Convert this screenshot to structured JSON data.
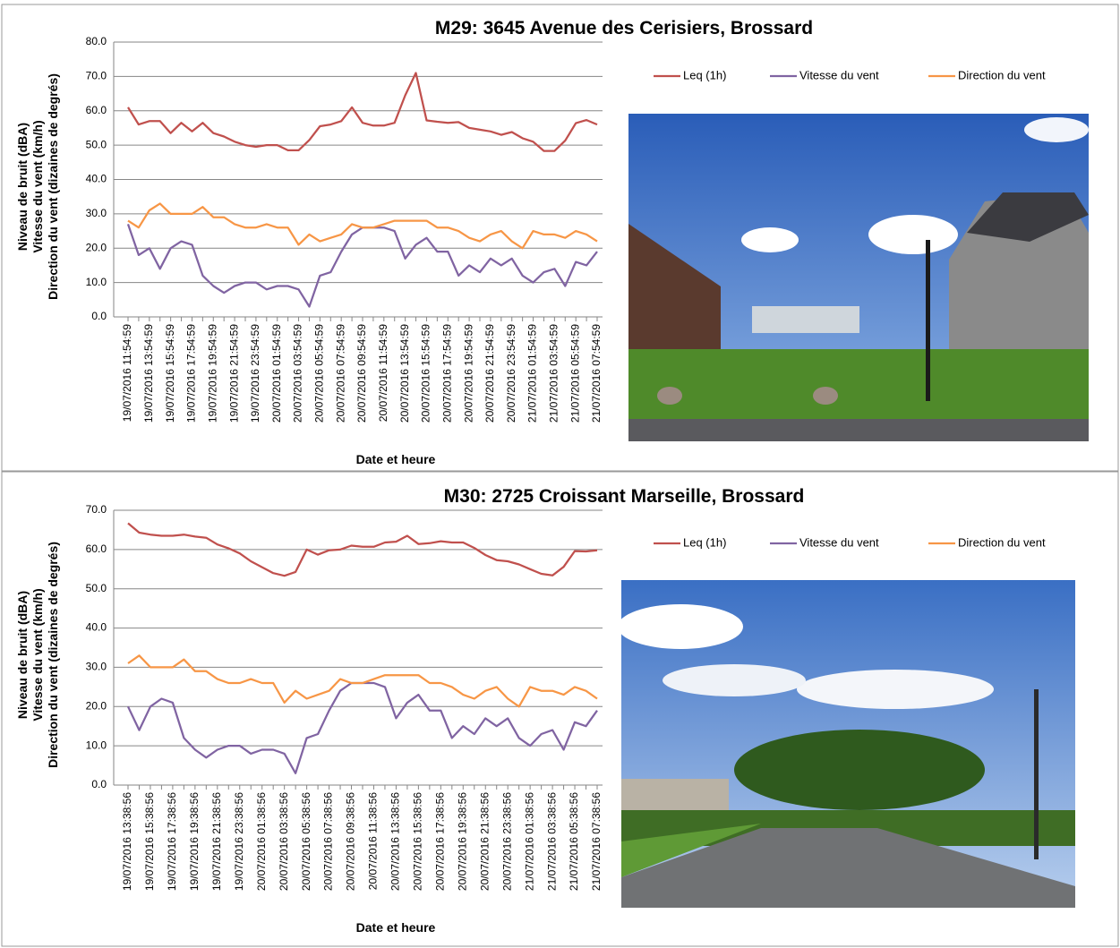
{
  "chart_data": [
    {
      "type": "line",
      "title": "M29: 3645 Avenue des Cerisiers, Brossard",
      "x_label": "Date et heure",
      "y_label": [
        "Niveau de bruit (dBA)",
        "Vitesse du vent (km/h)",
        "Direction du vent (dizaines de degrés)"
      ],
      "categories": [
        "19/07/2016 11:54:59",
        null,
        "19/07/2016 13:54:59",
        null,
        "19/07/2016 15:54:59",
        null,
        "19/07/2016 17:54:59",
        null,
        "19/07/2016 19:54:59",
        null,
        "19/07/2016 21:54:59",
        null,
        "19/07/2016 23:54:59",
        null,
        "20/07/2016 01:54:59",
        null,
        "20/07/2016 03:54:59",
        null,
        "20/07/2016 05:54:59",
        null,
        "20/07/2016 07:54:59",
        null,
        "20/07/2016 09:54:59",
        null,
        "20/07/2016 11:54:59",
        null,
        "20/07/2016 13:54:59",
        null,
        "20/07/2016 15:54:59",
        null,
        "20/07/2016 17:54:59",
        null,
        "20/07/2016 19:54:59",
        null,
        "20/07/2016 21:54:59",
        null,
        "20/07/2016 23:54:59",
        null,
        "21/07/2016 01:54:59",
        null,
        "21/07/2016 03:54:59",
        null,
        "21/07/2016 05:54:59",
        null,
        "21/07/2016 07:54:59"
      ],
      "series": [
        {
          "name": "Leq (1h)",
          "color": "#c0504d",
          "values": [
            61,
            56,
            57,
            57,
            53.5,
            56.5,
            54,
            56.5,
            53.5,
            52.5,
            51,
            50,
            49.5,
            50,
            50,
            48.5,
            48.5,
            51.5,
            55.5,
            56,
            57,
            61,
            56.5,
            55.7,
            55.7,
            56.5,
            64.5,
            71,
            57.2,
            56.8,
            56.5,
            56.7,
            55,
            54.5,
            54,
            53,
            53.8,
            52,
            51,
            48.3,
            48.3,
            51.3,
            56.4,
            57.3,
            56
          ]
        },
        {
          "name": "Vitesse du vent",
          "color": "#8064a2",
          "values": [
            27,
            18,
            20,
            14,
            20,
            22,
            21,
            12,
            9,
            7,
            9,
            10,
            10,
            8,
            9,
            9,
            8,
            3,
            12,
            13,
            19,
            24,
            26,
            26,
            26,
            25,
            17,
            21,
            23,
            19,
            19,
            12,
            15,
            13,
            17,
            15,
            17,
            12,
            10,
            13,
            14,
            9,
            16,
            15,
            19
          ]
        },
        {
          "name": "Direction du vent",
          "color": "#f79646",
          "values": [
            28,
            26,
            31,
            33,
            30,
            30,
            30,
            32,
            29,
            29,
            27,
            26,
            26,
            27,
            26,
            26,
            21,
            24,
            22,
            23,
            24,
            27,
            26,
            26,
            27,
            28,
            28,
            28,
            28,
            26,
            26,
            25,
            23,
            22,
            24,
            25,
            22,
            20,
            25,
            24,
            24,
            23,
            25,
            24,
            22
          ]
        }
      ],
      "ylim": [
        0,
        80
      ],
      "yticks": [
        {
          "value": 0,
          "label": "0.0"
        },
        {
          "value": 10,
          "label": "10.0"
        },
        {
          "value": 20,
          "label": "20.0"
        },
        {
          "value": 30,
          "label": "30.0"
        },
        {
          "value": 40,
          "label": "40.0"
        },
        {
          "value": 50,
          "label": "50.0"
        },
        {
          "value": 60,
          "label": "60.0"
        },
        {
          "value": 70,
          "label": "70.0"
        },
        {
          "value": 80,
          "label": "80.0"
        }
      ],
      "grid": true,
      "legend": "top-right"
    },
    {
      "type": "line",
      "title": "M30: 2725 Croissant Marseille, Brossard",
      "x_label": "Date et heure",
      "y_label": [
        "Niveau de bruit (dBA)",
        "Vitesse du vent (km/h)",
        "Direction du vent (dizaines de degrés)"
      ],
      "categories": [
        "19/07/2016 13:38:56",
        null,
        "19/07/2016 15:38:56",
        null,
        "19/07/2016 17:38:56",
        null,
        "19/07/2016 19:38:56",
        null,
        "19/07/2016 21:38:56",
        null,
        "19/07/2016 23:38:56",
        null,
        "20/07/2016 01:38:56",
        null,
        "20/07/2016 03:38:56",
        null,
        "20/07/2016 05:38:56",
        null,
        "20/07/2016 07:38:56",
        null,
        "20/07/2016 09:38:56",
        null,
        "20/07/2016 11:38:56",
        null,
        "20/07/2016 13:38:56",
        null,
        "20/07/2016 15:38:56",
        null,
        "20/07/2016 17:38:56",
        null,
        "20/07/2016 19:38:56",
        null,
        "20/07/2016 21:38:56",
        null,
        "20/07/2016 23:38:56",
        null,
        "21/07/2016 01:38:56",
        null,
        "21/07/2016 03:38:56",
        null,
        "21/07/2016 05:38:56",
        null,
        "21/07/2016 07:38:56"
      ],
      "series": [
        {
          "name": "Leq (1h)",
          "color": "#c0504d",
          "values": [
            66.7,
            64.3,
            63.8,
            63.5,
            63.5,
            63.8,
            63.3,
            63,
            61.3,
            60.3,
            59,
            57,
            55.5,
            54,
            53.3,
            54.3,
            60,
            58.7,
            59.8,
            60,
            61,
            60.7,
            60.7,
            61.8,
            62,
            63.5,
            61.4,
            61.6,
            62.1,
            61.8,
            61.8,
            60.4,
            58.6,
            57.3,
            57,
            56.2,
            55,
            53.8,
            53.4,
            55.6,
            59.6,
            59.5,
            59.8
          ]
        },
        {
          "name": "Vitesse du vent",
          "color": "#8064a2",
          "values": [
            20,
            14,
            20,
            22,
            21,
            12,
            9,
            7,
            9,
            10,
            10,
            8,
            9,
            9,
            8,
            3,
            12,
            13,
            19,
            24,
            26,
            26,
            26,
            25,
            17,
            21,
            23,
            19,
            19,
            12,
            15,
            13,
            17,
            15,
            17,
            12,
            10,
            13,
            14,
            9,
            16,
            15,
            19
          ]
        },
        {
          "name": "Direction du vent",
          "color": "#f79646",
          "values": [
            31,
            33,
            30,
            30,
            30,
            32,
            29,
            29,
            27,
            26,
            26,
            27,
            26,
            26,
            21,
            24,
            22,
            23,
            24,
            27,
            26,
            26,
            27,
            28,
            28,
            28,
            28,
            26,
            26,
            25,
            23,
            22,
            24,
            25,
            22,
            20,
            25,
            24,
            24,
            23,
            25,
            24,
            22
          ]
        }
      ],
      "ylim": [
        0,
        70
      ],
      "yticks": [
        {
          "value": 0,
          "label": "0.0"
        },
        {
          "value": 10,
          "label": "10.0"
        },
        {
          "value": 20,
          "label": "20.0"
        },
        {
          "value": 30,
          "label": "30.0"
        },
        {
          "value": 40,
          "label": "40.0"
        },
        {
          "value": 50,
          "label": "50.0"
        },
        {
          "value": 60,
          "label": "60.0"
        },
        {
          "value": 70,
          "label": "70.0"
        }
      ],
      "grid": true,
      "legend": "top-right"
    }
  ]
}
